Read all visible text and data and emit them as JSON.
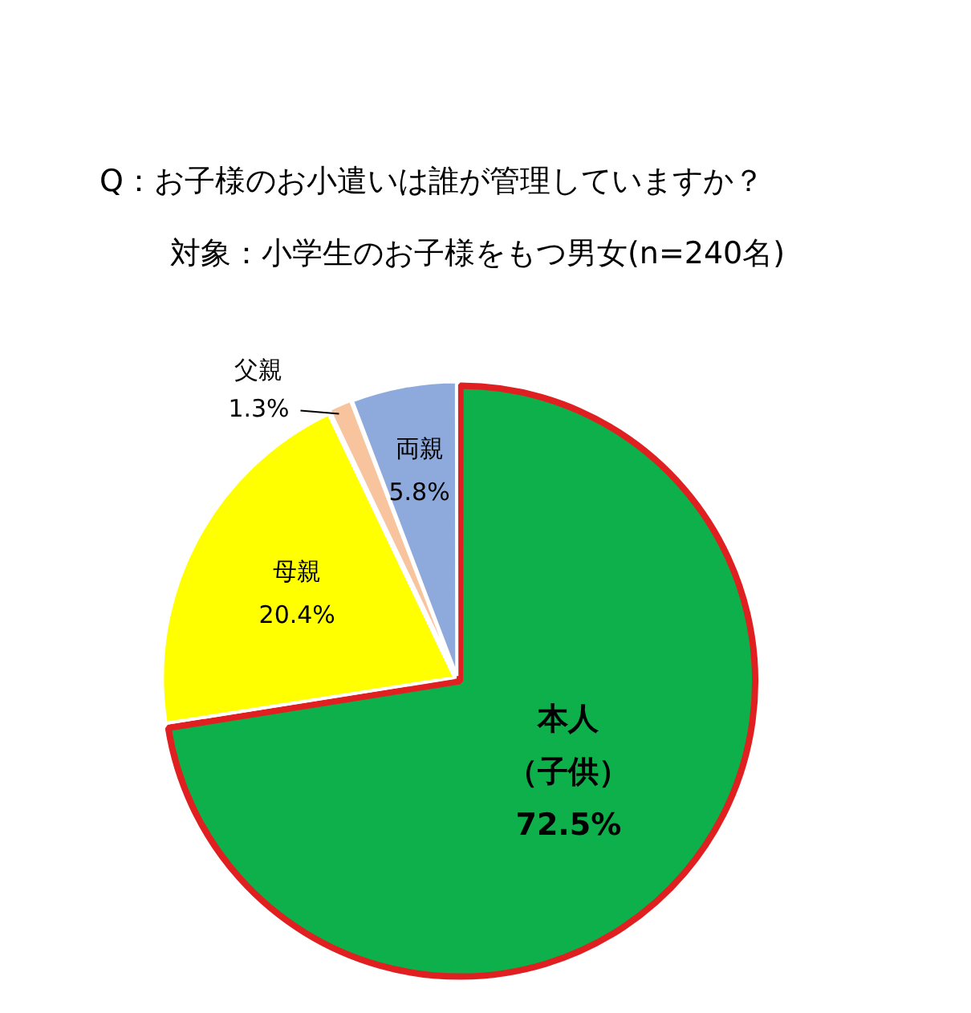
{
  "chart_data": {
    "type": "pie",
    "title": "Q：お子様のお小遣いは誰が管理していますか？",
    "subtitle": "対象：小学生のお子様をもつ男女(n=240名)",
    "categories": [
      "本人（子供）",
      "母親",
      "父親",
      "両親"
    ],
    "values": [
      72.5,
      20.4,
      1.3,
      5.8
    ],
    "colors": [
      "#0db04b",
      "#ffff00",
      "#f8c49e",
      "#8eaadc"
    ],
    "value_labels": [
      "72.5%",
      "20.4%",
      "1.3%",
      "5.8%"
    ],
    "legend": false
  }
}
